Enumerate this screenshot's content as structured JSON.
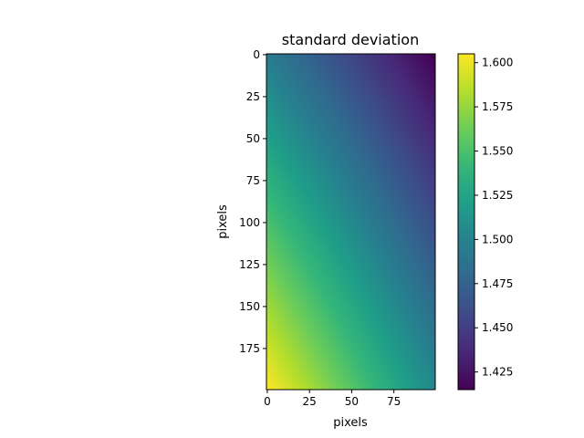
{
  "chart_data": {
    "type": "heatmap",
    "title": "standard deviation",
    "xlabel": "pixels",
    "ylabel": "pixels",
    "colormap": "viridis",
    "image_width": 100,
    "image_height": 200,
    "xlim": [
      -0.5,
      99.5
    ],
    "ylim": [
      199.5,
      -0.5
    ],
    "xticks": [
      0,
      25,
      50,
      75
    ],
    "yticks": [
      0,
      25,
      50,
      75,
      100,
      125,
      150,
      175
    ],
    "color_range": [
      1.415,
      1.605
    ],
    "colorbar_ticks": [
      "1.425",
      "1.450",
      "1.475",
      "1.500",
      "1.525",
      "1.550",
      "1.575",
      "1.600"
    ],
    "corner_values": {
      "top_left": 1.495,
      "top_right": 1.415,
      "bottom_left": 1.605,
      "bottom_right": 1.505
    }
  }
}
